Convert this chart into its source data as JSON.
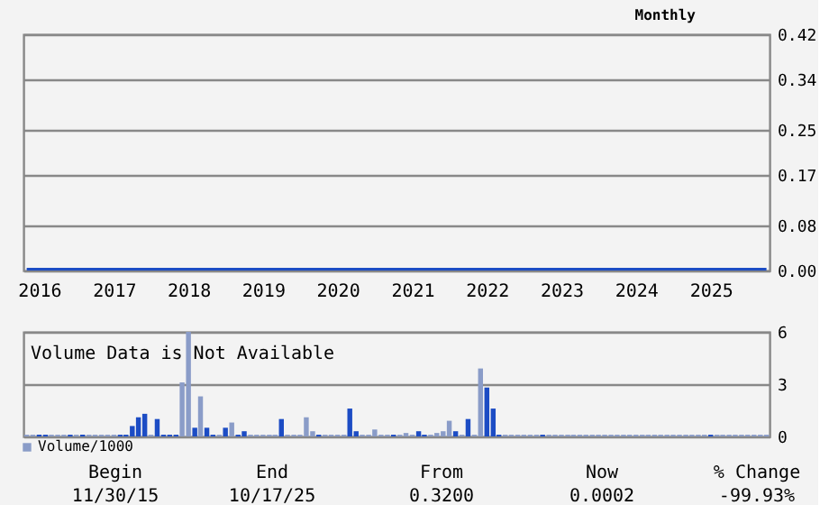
{
  "chart_data": [
    {
      "type": "line",
      "annotations": [
        "Monthly"
      ],
      "grid": "y",
      "xlim": [
        "2015-10-16",
        "2025-10-16"
      ],
      "xticks": [
        {
          "value": "2016-01-01",
          "label": "2016"
        },
        {
          "value": "2017-01-01",
          "label": "2017"
        },
        {
          "value": "2018-01-01",
          "label": "2018"
        },
        {
          "value": "2019-01-01",
          "label": "2019"
        },
        {
          "value": "2020-01-01",
          "label": "2020"
        },
        {
          "value": "2021-01-01",
          "label": "2021"
        },
        {
          "value": "2022-01-01",
          "label": "2022"
        },
        {
          "value": "2023-01-01",
          "label": "2023"
        },
        {
          "value": "2024-01-01",
          "label": "2024"
        },
        {
          "value": "2025-01-01",
          "label": "2025"
        }
      ],
      "ylim": [
        0,
        0.42
      ],
      "yticks": [
        {
          "value": 0,
          "label": "0.00"
        },
        0.08,
        0.17,
        0.25,
        0.34,
        0.42
      ],
      "series": [
        {
          "color": "#1c4cc4",
          "x": [
            "2015-11",
            "2025-10"
          ],
          "values": [
            0,
            0
          ]
        }
      ]
    },
    {
      "type": "bar",
      "annotations": [
        "Volume Data is Not Available"
      ],
      "grid": "y",
      "legend": "bottom left",
      "tick_labels": "y",
      "xlim": [
        "2015-10-16",
        "2025-10-16"
      ],
      "ylim": [
        0,
        6
      ],
      "yticks": [
        0,
        3,
        6
      ],
      "series": [
        {
          "name": "Volume/1000",
          "color": "#8a9cc8",
          "x": [
            "2015-11",
            "2015-12",
            "2016-01",
            "2016-02",
            "2016-03",
            "2016-04",
            "2016-05",
            "2016-06",
            "2016-07",
            "2016-08",
            "2016-09",
            "2016-10",
            "2016-11",
            "2016-12",
            "2017-01",
            "2017-02",
            "2017-03",
            "2017-04",
            "2017-05",
            "2017-06",
            "2017-07",
            "2017-08",
            "2017-09",
            "2017-10",
            "2017-11",
            "2017-12",
            "2018-01",
            "2018-02",
            "2018-03",
            "2018-04",
            "2018-05",
            "2018-06",
            "2018-07",
            "2018-08",
            "2018-09",
            "2018-10",
            "2018-11",
            "2018-12",
            "2019-01",
            "2019-02",
            "2019-03",
            "2019-04",
            "2019-05",
            "2019-06",
            "2019-07",
            "2019-08",
            "2019-09",
            "2019-10",
            "2019-11",
            "2019-12",
            "2020-01",
            "2020-02",
            "2020-03",
            "2020-04",
            "2020-05",
            "2020-06",
            "2020-07",
            "2020-08",
            "2020-09",
            "2020-10",
            "2020-11",
            "2020-12",
            "2021-01",
            "2021-02",
            "2021-03",
            "2021-04",
            "2021-05",
            "2021-06",
            "2021-07",
            "2021-08",
            "2021-09",
            "2021-10",
            "2021-11",
            "2021-12",
            "2022-01",
            "2022-02",
            "2022-03",
            "2022-04",
            "2022-05",
            "2022-06",
            "2022-07",
            "2022-08",
            "2022-09",
            "2022-10",
            "2022-11",
            "2022-12",
            "2023-01",
            "2023-02",
            "2023-03",
            "2023-04",
            "2023-05",
            "2023-06",
            "2023-07",
            "2023-08",
            "2023-09",
            "2023-10",
            "2023-11",
            "2023-12",
            "2024-01",
            "2024-02",
            "2024-03",
            "2024-04",
            "2024-05",
            "2024-06",
            "2024-07",
            "2024-08",
            "2024-09",
            "2024-10",
            "2024-11",
            "2024-12",
            "2025-01",
            "2025-02",
            "2025-03",
            "2025-04",
            "2025-05",
            "2025-06",
            "2025-07",
            "2025-08",
            "2025-09",
            "2025-10"
          ],
          "values": [
            0.1,
            0.1,
            0.1,
            0.1,
            0.1,
            0.1,
            0.1,
            0.1,
            0.1,
            0.1,
            0.1,
            0.1,
            0.1,
            0.1,
            0.1,
            0.1,
            0.1,
            0.6,
            1.1,
            1.3,
            0.1,
            1.0,
            0.1,
            0.1,
            0.1,
            3.1,
            6.0,
            0.5,
            2.3,
            0.5,
            0.1,
            0.1,
            0.5,
            0.8,
            0.1,
            0.3,
            0.1,
            0.1,
            0.1,
            0.1,
            0.1,
            1.0,
            0.1,
            0.1,
            0.1,
            1.1,
            0.3,
            0.1,
            0.1,
            0.1,
            0.1,
            0.1,
            1.6,
            0.3,
            0.1,
            0.1,
            0.4,
            0.1,
            0.1,
            0.1,
            0.1,
            0.2,
            0.1,
            0.3,
            0.1,
            0.1,
            0.2,
            0.3,
            0.9,
            0.3,
            0.1,
            1.0,
            0.1,
            3.9,
            2.8,
            1.6,
            0.1,
            0.1,
            0.1,
            0.1,
            0.1,
            0.1,
            0.1,
            0.1,
            0.1,
            0.1,
            0.1,
            0.1,
            0.1,
            0.1,
            0.1,
            0.1,
            0.1,
            0.1,
            0.1,
            0.1,
            0.1,
            0.1,
            0.1,
            0.1,
            0.1,
            0.1,
            0.1,
            0.1,
            0.1,
            0.1,
            0.1,
            0.1,
            0.1,
            0.1,
            0.1,
            0.1,
            0.1,
            0.1,
            0.1,
            0.1,
            0.1,
            0.1,
            0.1,
            0.1
          ],
          "colors": [
            "#8a9cc8",
            "#8a9cc8",
            "#1c4cc4",
            "#1c4cc4",
            "#8a9cc8",
            "#8a9cc8",
            "#8a9cc8",
            "#1c4cc4",
            "#8a9cc8",
            "#1c4cc4",
            "#8a9cc8",
            "#8a9cc8",
            "#8a9cc8",
            "#8a9cc8",
            "#8a9cc8",
            "#1c4cc4",
            "#1c4cc4",
            "#1c4cc4",
            "#1c4cc4",
            "#1c4cc4",
            "#8a9cc8",
            "#1c4cc4",
            "#1c4cc4",
            "#1c4cc4",
            "#1c4cc4",
            "#8a9cc8",
            "#8a9cc8",
            "#1c4cc4",
            "#8a9cc8",
            "#1c4cc4",
            "#1c4cc4",
            "#8a9cc8",
            "#1c4cc4",
            "#8a9cc8",
            "#1c4cc4",
            "#1c4cc4",
            "#8a9cc8",
            "#8a9cc8",
            "#8a9cc8",
            "#8a9cc8",
            "#8a9cc8",
            "#1c4cc4",
            "#8a9cc8",
            "#8a9cc8",
            "#8a9cc8",
            "#8a9cc8",
            "#8a9cc8",
            "#1c4cc4",
            "#8a9cc8",
            "#8a9cc8",
            "#8a9cc8",
            "#8a9cc8",
            "#1c4cc4",
            "#1c4cc4",
            "#8a9cc8",
            "#8a9cc8",
            "#8a9cc8",
            "#8a9cc8",
            "#8a9cc8",
            "#1c4cc4",
            "#8a9cc8",
            "#8a9cc8",
            "#8a9cc8",
            "#1c4cc4",
            "#1c4cc4",
            "#8a9cc8",
            "#8a9cc8",
            "#8a9cc8",
            "#8a9cc8",
            "#1c4cc4",
            "#8a9cc8",
            "#1c4cc4",
            "#8a9cc8",
            "#8a9cc8",
            "#1c4cc4",
            "#1c4cc4",
            "#1c4cc4",
            "#8a9cc8",
            "#8a9cc8",
            "#8a9cc8",
            "#8a9cc8",
            "#8a9cc8",
            "#8a9cc8",
            "#1c4cc4",
            "#8a9cc8",
            "#8a9cc8",
            "#8a9cc8",
            "#8a9cc8",
            "#8a9cc8",
            "#8a9cc8",
            "#8a9cc8",
            "#8a9cc8",
            "#8a9cc8",
            "#8a9cc8",
            "#8a9cc8",
            "#8a9cc8",
            "#8a9cc8",
            "#8a9cc8",
            "#8a9cc8",
            "#8a9cc8",
            "#8a9cc8",
            "#8a9cc8",
            "#8a9cc8",
            "#8a9cc8",
            "#8a9cc8",
            "#8a9cc8",
            "#8a9cc8",
            "#8a9cc8",
            "#8a9cc8",
            "#8a9cc8",
            "#1c4cc4",
            "#8a9cc8",
            "#8a9cc8",
            "#8a9cc8",
            "#8a9cc8",
            "#8a9cc8",
            "#8a9cc8",
            "#8a9cc8",
            "#8a9cc8",
            "#8a9cc8"
          ]
        }
      ]
    },
    {
      "type": "other",
      "annotations": [
        "Begin",
        "End",
        "From",
        "Now",
        "% Change",
        "11/30/15",
        "10/17/25",
        "0.3200",
        "0.0002",
        "-99.93%"
      ]
    }
  ]
}
